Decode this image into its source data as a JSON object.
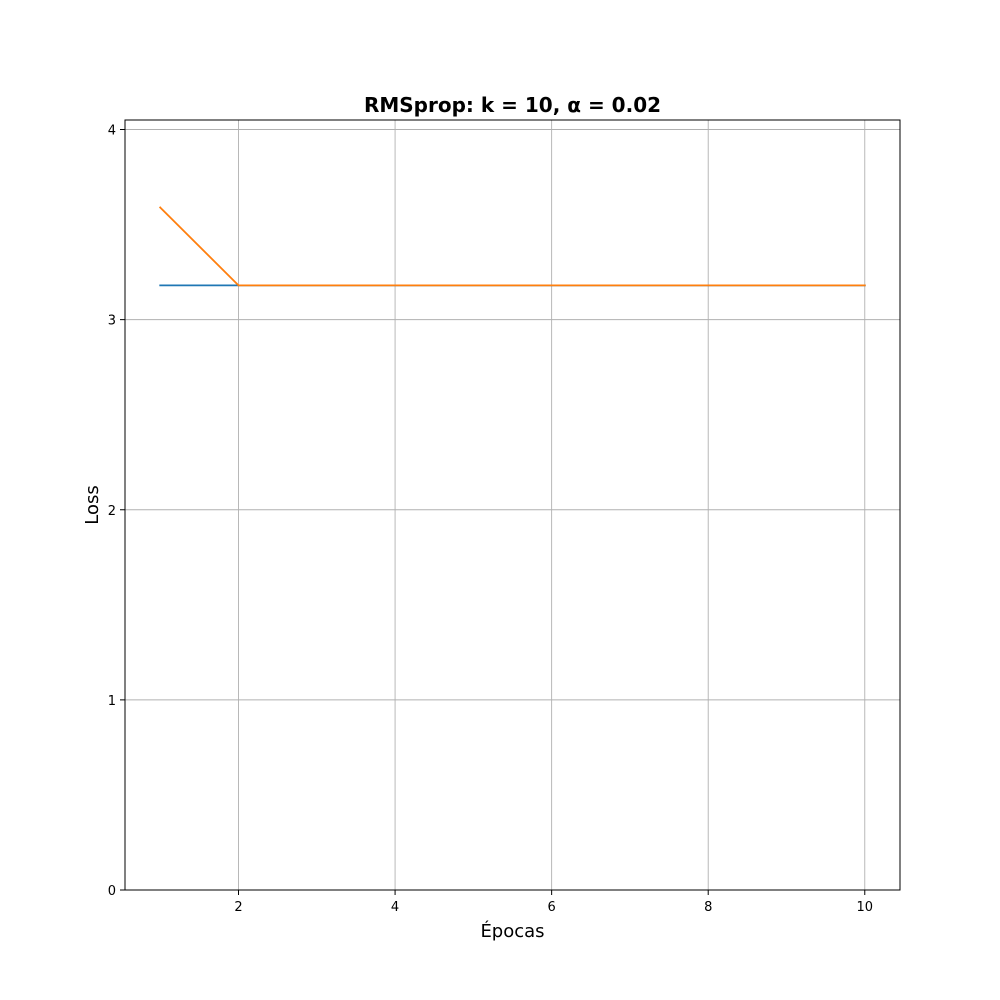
{
  "chart_data": {
    "type": "line",
    "title": "RMSprop: k = 10, α = 0.02",
    "xlabel": "Épocas",
    "ylabel": "Loss",
    "xlim": [
      0.55,
      10.45
    ],
    "ylim": [
      0,
      4.05
    ],
    "xticks": [
      2,
      4,
      6,
      8,
      10
    ],
    "yticks": [
      0,
      1,
      2,
      3,
      4
    ],
    "grid": true,
    "legend": "none",
    "x": [
      1,
      2,
      3,
      4,
      5,
      6,
      7,
      8,
      9,
      10
    ],
    "series": [
      {
        "color": "#1f77b4",
        "values": [
          3.18,
          3.18,
          3.18,
          3.18,
          3.18,
          3.18,
          3.18,
          3.18,
          3.18,
          3.18
        ]
      },
      {
        "color": "#ff7f0e",
        "values": [
          3.59,
          3.18,
          3.18,
          3.18,
          3.18,
          3.18,
          3.18,
          3.18,
          3.18,
          3.18
        ]
      }
    ]
  }
}
